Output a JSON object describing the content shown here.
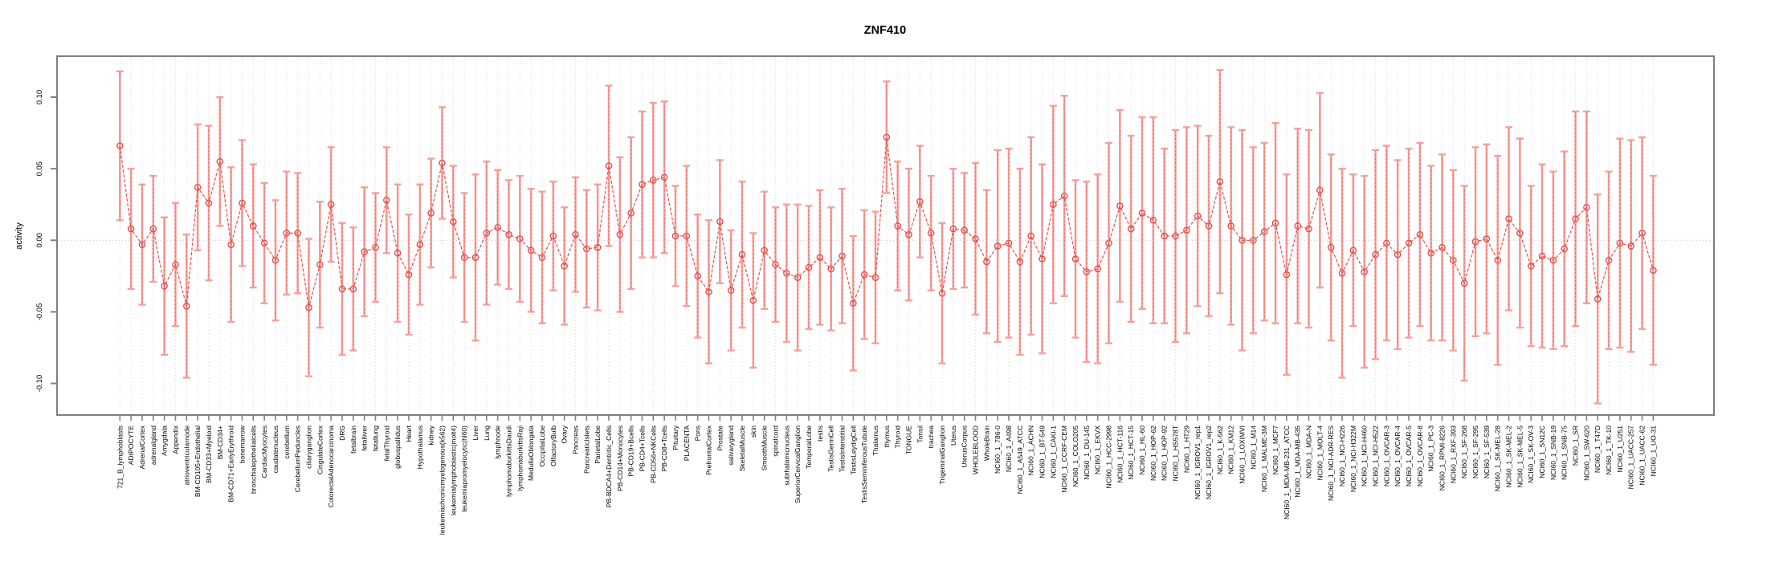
{
  "chart_data": {
    "type": "line",
    "title": "ZNF410",
    "xlabel": "",
    "ylabel": "activity",
    "ylim": [
      -0.125,
      0.129
    ],
    "yticks": [
      {
        "label": "0.10",
        "value": 0.1
      },
      {
        "label": "0.05",
        "value": 0.05
      },
      {
        "label": "0.00",
        "value": 0.0
      },
      {
        "label": "-0.05",
        "value": -0.05
      },
      {
        "label": "-0.10",
        "value": -0.1
      }
    ],
    "grid": "vertical-dotted-per-category",
    "zero_line": true,
    "legend": "none",
    "marker": "open-circle",
    "colors": {
      "line": "#e4504c",
      "marker": "#e4504c",
      "error_bar": "#f5a09c",
      "error_bar_dash": "#ef6e6a",
      "gridline": "#d8d8d8",
      "zero_line": "#c4c4c4",
      "frame": "#7f7f7f",
      "text": "#000000",
      "background": "#ffffff"
    },
    "categories": [
      "721_B_lymphoblasts",
      "ADIPOCYTE",
      "AdrenalCortex",
      "adrenalgland",
      "Amygdala",
      "Appendix",
      "atrioventricularnode",
      "BM-CD105+Endothelial",
      "BM-CD33+Myeloid",
      "BM-CD34+",
      "BM-CD71+EarlyErythroid",
      "bonemarrow",
      "bronchialepithelialcells",
      "CardiacMyocytes",
      "caudatenucleus",
      "cerebellum",
      "CerebellumPeduncles",
      "ciliaryganglion",
      "CingulateCortex",
      "ColorectalAdenocarcinoma",
      "DRG",
      "fetalbrain",
      "fetalliver",
      "fetallung",
      "fetalThyroid",
      "globuspallidus",
      "Heart",
      "Hypothalamus",
      "kidney",
      "leukemiachronicmyelogenous(k562)",
      "leukemialymphoblastic(molt4)",
      "leukemiapromyelocytic(hl60)",
      "Liver",
      "Lung",
      "lymphnode",
      "lymphomaburkittsDaudi",
      "lymphomaburkittsRaji",
      "MedullaOblongata",
      "OccipitalLobe",
      "OlfactoryBulb",
      "Ovary",
      "Pancreas",
      "PancreaticIslets",
      "ParietalLobe",
      "PB-BDCA4+Dentritic_Cells",
      "PB-CD14+Monocytes",
      "PB-CD19+Bcells",
      "PB-CD4+Tcells",
      "PB-CD56+NKCells",
      "PB-CD8+Tcells",
      "Pituitary",
      "PLACENTA",
      "Pons",
      "PrefrontalCortex",
      "Prostate",
      "salivarygland",
      "SkeletalMuscle",
      "skin",
      "SmoothMuscle",
      "spinalcord",
      "subthalamicnucleus",
      "SuperiorCervicalGanglion",
      "TemporalLobe",
      "testis",
      "TestisGermCell",
      "TestisInterstitial",
      "TestisLeydigCell",
      "TestisSeminiferousTubule",
      "Thalamus",
      "thymus",
      "Thyroid",
      "TONGUE",
      "Tonsil",
      "trachea",
      "TrigeminalGanglion",
      "Uterus",
      "UterusCorpus",
      "WHOLEBLOOD",
      "WholeBrain",
      "NCI60_1_786-0",
      "NCI60_1_A498",
      "NCI60_1_A549_ATCC",
      "NCI60_1_ACHN",
      "NCI60_1_BT-549",
      "NCI60_1_CAKI-1",
      "NCI60_1_CCRF-CEM",
      "NCI60_1_COLO205",
      "NCI60_1_DU-145",
      "NCI60_1_EKVX",
      "NCI60_1_HCC-2998",
      "NCI60_1_HCT-116",
      "NCI60_1_HCT-15",
      "NCI60_1_HL-60",
      "NCI60_1_HOP-62",
      "NCI60_1_HOP-92",
      "NCI60_1_HS578T",
      "NCI60_1_HT29",
      "NCI60_1_IGROV1_rep1",
      "NCI60_1_IGROV1_rep2",
      "NCI60_1_K-562",
      "NCI60_1_KM12",
      "NCI60_1_LOXIMVI",
      "NCI60_1_M14",
      "NCI60_1_MALME-3M",
      "NCI60_1_MCF7",
      "NCI60_1_MDA-MB-231_ATCC",
      "NCI60_1_MDA-MB-435",
      "NCI60_1_MDA-N",
      "NCI60_1_MOLT-4",
      "NCI60_1_NCI-ADR-RES",
      "NCI60_1_NCI-H226",
      "NCI60_1_NCI-H322M",
      "NCI60_1_NCI-H460",
      "NCI60_1_NCI-H522",
      "NCI60_1_OVCAR-3",
      "NCI60_1_OVCAR-4",
      "NCI60_1_OVCAR-5",
      "NCI60_1_OVCAR-8",
      "NCI60_1_PC-3",
      "NCI60_1_RPMI-8226",
      "NCI60_1_RXF-393",
      "NCI60_1_SF-268",
      "NCI60_1_SF-295",
      "NCI60_1_SF-539",
      "NCI60_1_SK-MEL-28",
      "NCI60_1_SK-MEL-2",
      "NCI60_1_SK-MEL-5",
      "NCI60_1_SK-OV-3",
      "NCI60_1_SN12C",
      "NCI60_1_SNB-19",
      "NCI60_1_SNB-75",
      "NCI60_1_SR",
      "NCI60_1_SW-620",
      "NCI60_1_T47D",
      "NCI60_1_TK-10",
      "NCI60_1_U251",
      "NCI60_1_UACC-257",
      "NCI60_1_UACC-62",
      "NCI60_1_UO-31"
    ],
    "series": [
      {
        "name": "activity",
        "values": [
          0.066,
          0.008,
          -0.003,
          0.008,
          -0.032,
          -0.017,
          -0.046,
          0.037,
          0.026,
          0.055,
          -0.003,
          0.026,
          0.01,
          -0.002,
          -0.014,
          0.005,
          0.005,
          -0.047,
          -0.017,
          0.025,
          -0.034,
          -0.034,
          -0.008,
          -0.005,
          0.028,
          -0.009,
          -0.024,
          -0.003,
          0.019,
          0.054,
          0.013,
          -0.012,
          -0.012,
          0.005,
          0.009,
          0.004,
          0.001,
          -0.007,
          -0.012,
          0.003,
          -0.018,
          0.004,
          -0.006,
          -0.005,
          0.052,
          0.004,
          0.019,
          0.039,
          0.042,
          0.044,
          0.003,
          0.003,
          -0.025,
          -0.036,
          0.013,
          -0.035,
          -0.01,
          -0.042,
          -0.007,
          -0.017,
          -0.023,
          -0.026,
          -0.019,
          -0.012,
          -0.02,
          -0.011,
          -0.044,
          -0.024,
          -0.026,
          0.072,
          0.01,
          0.004,
          0.027,
          0.005,
          -0.037,
          0.008,
          0.007,
          0.001,
          -0.015,
          -0.004,
          -0.002,
          -0.015,
          0.003,
          -0.013,
          0.025,
          0.031,
          -0.013,
          -0.022,
          -0.02,
          -0.002,
          0.024,
          0.008,
          0.019,
          0.014,
          0.003,
          0.003,
          0.007,
          0.017,
          0.01,
          0.041,
          0.01,
          0.0,
          0.0,
          0.006,
          0.012,
          -0.024,
          0.01,
          0.008,
          0.035,
          -0.005,
          -0.023,
          -0.007,
          -0.022,
          -0.01,
          -0.002,
          -0.01,
          -0.002,
          0.004,
          -0.009,
          -0.005,
          -0.014,
          -0.03,
          -0.001,
          0.001,
          -0.014,
          0.015,
          0.005,
          -0.018,
          -0.011,
          -0.014,
          -0.006,
          0.015,
          0.023,
          -0.041,
          -0.014,
          -0.002,
          -0.004,
          0.005,
          -0.021
        ],
        "errors": [
          0.052,
          0.042,
          0.042,
          0.037,
          0.048,
          0.043,
          0.05,
          0.044,
          0.054,
          0.045,
          0.054,
          0.044,
          0.043,
          0.042,
          0.042,
          0.043,
          0.042,
          0.048,
          0.044,
          0.04,
          0.046,
          0.043,
          0.045,
          0.038,
          0.037,
          0.048,
          0.042,
          0.042,
          0.038,
          0.039,
          0.039,
          0.045,
          0.058,
          0.05,
          0.04,
          0.038,
          0.044,
          0.043,
          0.046,
          0.038,
          0.041,
          0.04,
          0.041,
          0.044,
          0.056,
          0.054,
          0.053,
          0.051,
          0.054,
          0.053,
          0.035,
          0.049,
          0.043,
          0.05,
          0.043,
          0.042,
          0.051,
          0.047,
          0.041,
          0.04,
          0.048,
          0.051,
          0.043,
          0.047,
          0.043,
          0.047,
          0.047,
          0.045,
          0.046,
          0.039,
          0.045,
          0.046,
          0.039,
          0.04,
          0.049,
          0.042,
          0.04,
          0.053,
          0.05,
          0.067,
          0.066,
          0.065,
          0.069,
          0.066,
          0.069,
          0.07,
          0.055,
          0.063,
          0.066,
          0.07,
          0.067,
          0.065,
          0.067,
          0.072,
          0.061,
          0.074,
          0.072,
          0.063,
          0.063,
          0.078,
          0.069,
          0.077,
          0.065,
          0.062,
          0.07,
          0.07,
          0.068,
          0.069,
          0.068,
          0.065,
          0.073,
          0.053,
          0.067,
          0.073,
          0.068,
          0.066,
          0.066,
          0.064,
          0.061,
          0.065,
          0.063,
          0.068,
          0.066,
          0.066,
          0.073,
          0.064,
          0.066,
          0.056,
          0.064,
          0.062,
          0.068,
          0.075,
          0.067,
          0.073,
          0.062,
          0.073,
          0.074,
          0.067,
          0.066
        ]
      }
    ]
  }
}
